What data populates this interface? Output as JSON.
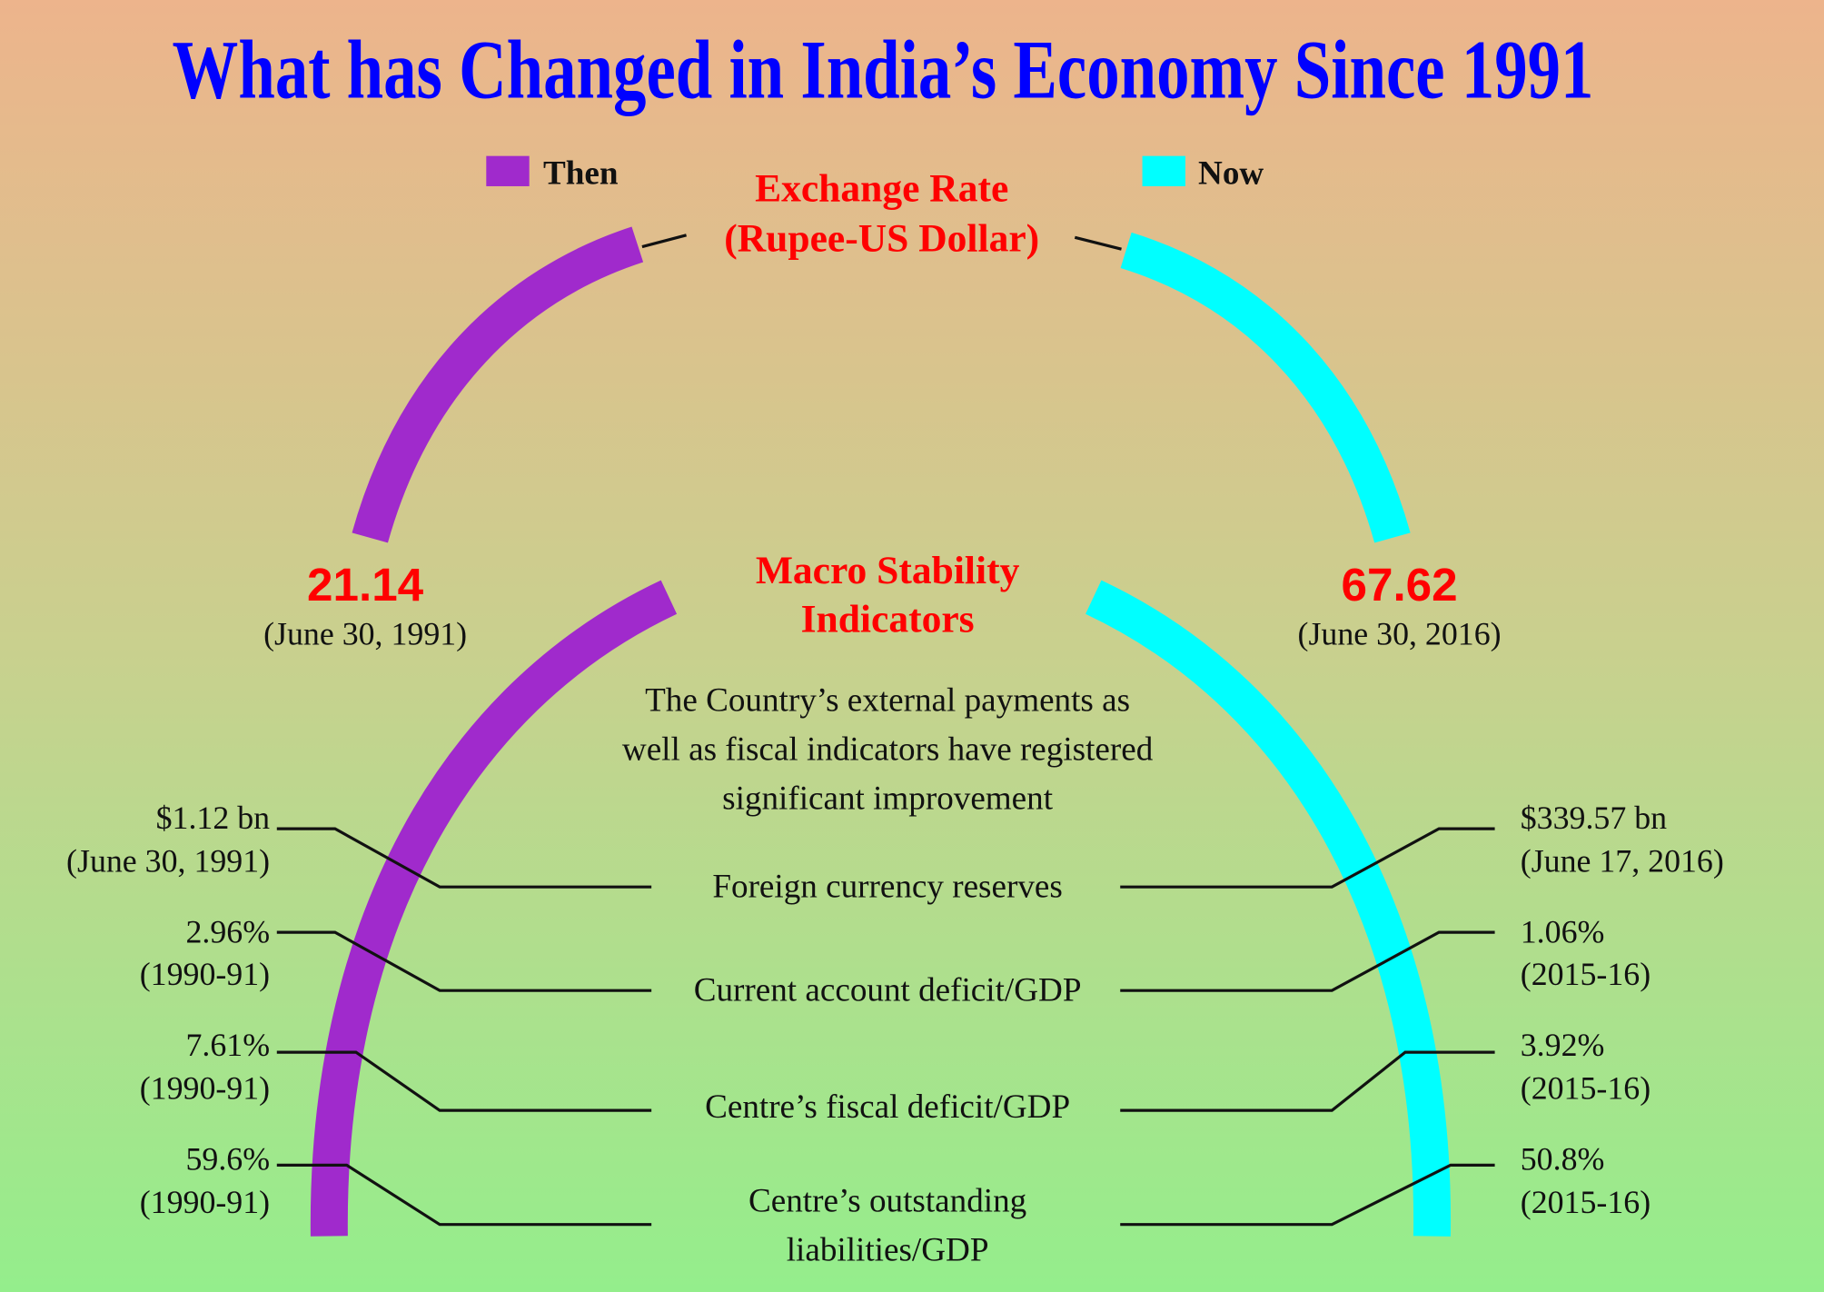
{
  "title": "What has Changed in India’s Economy Since 1991",
  "legend": {
    "then": "Then",
    "now": "Now"
  },
  "colors": {
    "then": "#a02acc",
    "now": "#00ffff",
    "title": "#0000ff",
    "heading": "#ff0000",
    "bg_top": "#edb48c",
    "bg_bottom": "#94ee8c"
  },
  "exchange_rate": {
    "heading_line1": "Exchange Rate",
    "heading_line2": "(Rupee-US Dollar)",
    "then_value": "21.14",
    "then_date": "(June 30, 1991)",
    "now_value": "67.62",
    "now_date": "(June 30, 2016)"
  },
  "macro": {
    "heading_line1": "Macro Stability",
    "heading_line2": "Indicators",
    "description": [
      "The Country’s external payments as",
      "well as fiscal indicators have registered",
      "significant improvement"
    ],
    "indicators": [
      {
        "label": [
          "Foreign currency reserves"
        ],
        "then_value": "$1.12 bn",
        "then_date": "(June 30, 1991)",
        "now_value": "$339.57 bn",
        "now_date": "(June 17, 2016)"
      },
      {
        "label": [
          "Current account deficit/GDP"
        ],
        "then_value": "2.96%",
        "then_date": "(1990-91)",
        "now_value": "1.06%",
        "now_date": "(2015-16)"
      },
      {
        "label": [
          "Centre’s fiscal deficit/GDP"
        ],
        "then_value": "7.61%",
        "then_date": "(1990-91)",
        "now_value": "3.92%",
        "now_date": "(2015-16)"
      },
      {
        "label": [
          "Centre’s outstanding",
          "liabilities/GDP"
        ],
        "then_value": "59.6%",
        "then_date": "(1990-91)",
        "now_value": "50.8%",
        "now_date": "(2015-16)"
      }
    ]
  }
}
